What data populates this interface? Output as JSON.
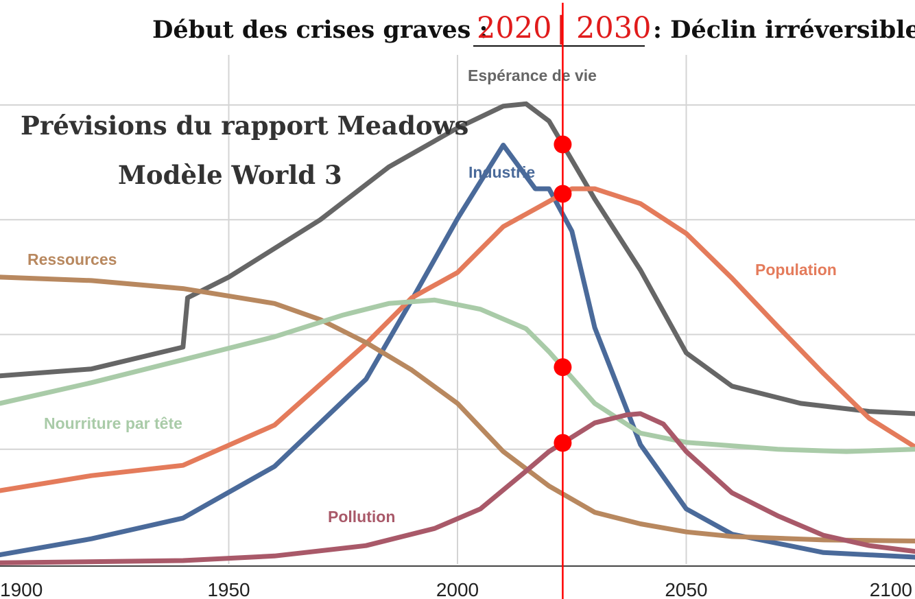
{
  "header": {
    "left_text": "Début des crises graves :",
    "year_start": "2020",
    "divider": "|",
    "year_end": "2030",
    "right_text": ": Déclin irréversible"
  },
  "chart_data": {
    "type": "line",
    "title_line1": "Prévisions du rapport Meadows",
    "title_line2": "Modèle World 3",
    "x_ticks": [
      1900,
      1950,
      2000,
      2050,
      2100
    ],
    "x_tick_labels": [
      "1900",
      "1950",
      "2000",
      "2050",
      "2100"
    ],
    "xlim": [
      1900,
      2100
    ],
    "ylim": [
      0,
      4
    ],
    "grid": true,
    "marker_year": 2023,
    "marker_color": "#ff0000",
    "series": [
      {
        "name": "Espérance de vie",
        "color": "#666666",
        "points": [
          [
            1900,
            1.64
          ],
          [
            1920,
            1.7
          ],
          [
            1940,
            1.89
          ],
          [
            1941,
            2.32
          ],
          [
            1950,
            2.5
          ],
          [
            1970,
            3.0
          ],
          [
            1985,
            3.46
          ],
          [
            2000,
            3.8
          ],
          [
            2010,
            3.99
          ],
          [
            2015,
            4.01
          ],
          [
            2020,
            3.86
          ],
          [
            2030,
            3.18
          ],
          [
            2040,
            2.56
          ],
          [
            2050,
            1.84
          ],
          [
            2060,
            1.55
          ],
          [
            2075,
            1.4
          ],
          [
            2090,
            1.33
          ],
          [
            2100,
            1.31
          ]
        ]
      },
      {
        "name": "Industrie",
        "color": "#4a6a9a",
        "points": [
          [
            1900,
            0.08
          ],
          [
            1920,
            0.22
          ],
          [
            1940,
            0.4
          ],
          [
            1960,
            0.85
          ],
          [
            1980,
            1.61
          ],
          [
            1990,
            2.3
          ],
          [
            2000,
            3.01
          ],
          [
            2010,
            3.65
          ],
          [
            2017,
            3.27
          ],
          [
            2020,
            3.27
          ],
          [
            2025,
            2.9
          ],
          [
            2030,
            2.06
          ],
          [
            2040,
            1.04
          ],
          [
            2050,
            0.48
          ],
          [
            2060,
            0.26
          ],
          [
            2080,
            0.1
          ],
          [
            2100,
            0.06
          ]
        ]
      },
      {
        "name": "Population",
        "color": "#e47b5b",
        "points": [
          [
            1900,
            0.64
          ],
          [
            1920,
            0.77
          ],
          [
            1940,
            0.86
          ],
          [
            1960,
            1.21
          ],
          [
            1980,
            1.92
          ],
          [
            1990,
            2.32
          ],
          [
            2000,
            2.54
          ],
          [
            2010,
            2.94
          ],
          [
            2020,
            3.16
          ],
          [
            2025,
            3.27
          ],
          [
            2030,
            3.27
          ],
          [
            2040,
            3.14
          ],
          [
            2050,
            2.88
          ],
          [
            2060,
            2.49
          ],
          [
            2070,
            2.07
          ],
          [
            2080,
            1.66
          ],
          [
            2090,
            1.27
          ],
          [
            2100,
            1.02
          ]
        ]
      },
      {
        "name": "Ressources",
        "color": "#b8885f",
        "points": [
          [
            1900,
            2.5
          ],
          [
            1920,
            2.47
          ],
          [
            1940,
            2.4
          ],
          [
            1960,
            2.27
          ],
          [
            1970,
            2.13
          ],
          [
            1980,
            1.93
          ],
          [
            1990,
            1.69
          ],
          [
            2000,
            1.4
          ],
          [
            2010,
            0.98
          ],
          [
            2020,
            0.68
          ],
          [
            2030,
            0.45
          ],
          [
            2040,
            0.35
          ],
          [
            2050,
            0.28
          ],
          [
            2060,
            0.24
          ],
          [
            2080,
            0.21
          ],
          [
            2100,
            0.2
          ]
        ]
      },
      {
        "name": "Nourriture par tête",
        "color": "#a9cba8",
        "points": [
          [
            1900,
            1.4
          ],
          [
            1920,
            1.58
          ],
          [
            1940,
            1.78
          ],
          [
            1960,
            1.98
          ],
          [
            1975,
            2.17
          ],
          [
            1985,
            2.27
          ],
          [
            1995,
            2.3
          ],
          [
            2005,
            2.22
          ],
          [
            2015,
            2.05
          ],
          [
            2020,
            1.85
          ],
          [
            2030,
            1.4
          ],
          [
            2040,
            1.14
          ],
          [
            2050,
            1.06
          ],
          [
            2070,
            1.0
          ],
          [
            2085,
            0.98
          ],
          [
            2100,
            1.0
          ]
        ]
      },
      {
        "name": "Pollution",
        "color": "#a95969",
        "points": [
          [
            1900,
            0.01
          ],
          [
            1940,
            0.03
          ],
          [
            1960,
            0.07
          ],
          [
            1980,
            0.16
          ],
          [
            1995,
            0.31
          ],
          [
            2005,
            0.48
          ],
          [
            2015,
            0.81
          ],
          [
            2020,
            0.98
          ],
          [
            2030,
            1.23
          ],
          [
            2037,
            1.3
          ],
          [
            2040,
            1.31
          ],
          [
            2045,
            1.22
          ],
          [
            2050,
            0.98
          ],
          [
            2060,
            0.62
          ],
          [
            2070,
            0.42
          ],
          [
            2080,
            0.25
          ],
          [
            2090,
            0.16
          ],
          [
            2100,
            0.11
          ]
        ]
      }
    ],
    "series_labels": [
      "Espérance de vie",
      "Industrie",
      "Ressources",
      "Population",
      "Nourriture par tête",
      "Pollution"
    ],
    "intersection_series": [
      "Espérance de vie",
      "Population",
      "Nourriture par tête",
      "Pollution"
    ]
  }
}
